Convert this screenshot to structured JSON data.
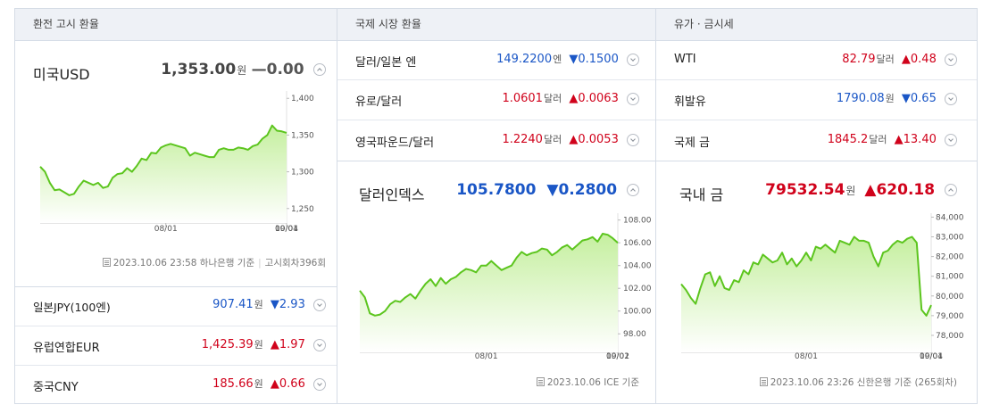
{
  "columns": [
    {
      "header": "환전 고시 환율",
      "main": {
        "name": "미국USD",
        "value": "1,353.00",
        "unit": "원",
        "dir": "flat",
        "arrow": "—",
        "change": "0.00"
      },
      "footer": {
        "date": "2023.10.06 23:58 하나은행 기준",
        "extra": "고시회차396회"
      },
      "rows": [
        {
          "name": "일본JPY(100엔)",
          "value": "907.41",
          "unit": "원",
          "dir": "down",
          "arrow": "▼",
          "change": "2.93"
        },
        {
          "name": "유럽연합EUR",
          "value": "1,425.39",
          "unit": "원",
          "dir": "up",
          "arrow": "▲",
          "change": "1.97"
        },
        {
          "name": "중국CNY",
          "value": "185.66",
          "unit": "원",
          "dir": "up",
          "arrow": "▲",
          "change": "0.66"
        }
      ]
    },
    {
      "header": "국제 시장 환율",
      "rows": [
        {
          "name": "달러/일본 엔",
          "value": "149.2200",
          "unit": "엔",
          "dir": "down",
          "arrow": "▼",
          "change": "0.1500"
        },
        {
          "name": "유로/달러",
          "value": "1.0601",
          "unit": "달러",
          "dir": "up",
          "arrow": "▲",
          "change": "0.0063"
        },
        {
          "name": "영국파운드/달러",
          "value": "1.2240",
          "unit": "달러",
          "dir": "up",
          "arrow": "▲",
          "change": "0.0053"
        }
      ],
      "main": {
        "name": "달러인덱스",
        "value": "105.7800",
        "unit": "",
        "dir": "down",
        "arrow": "▼",
        "change": "0.2800"
      },
      "footer": {
        "date": "2023.10.06 ICE 기준",
        "extra": ""
      }
    },
    {
      "header": "유가 · 금시세",
      "rows": [
        {
          "name": "WTI",
          "value": "82.79",
          "unit": "달러",
          "dir": "up",
          "arrow": "▲",
          "change": "0.48"
        },
        {
          "name": "휘발유",
          "value": "1790.08",
          "unit": "원",
          "dir": "down",
          "arrow": "▼",
          "change": "0.65"
        },
        {
          "name": "국제 금",
          "value": "1845.2",
          "unit": "달러",
          "dir": "up",
          "arrow": "▲",
          "change": "13.40"
        }
      ],
      "main": {
        "name": "국내 금",
        "value": "79532.54",
        "unit": "원",
        "dir": "up",
        "arrow": "▲",
        "change": "620.18"
      },
      "footer": {
        "date": "2023.10.06 23:26 신한은행 기준",
        "extra": "(265회차)"
      }
    }
  ],
  "colors": {
    "line": "#5cc51e",
    "fill_top": "#c5ef9f",
    "fill_bottom": "#ffffff",
    "up": "#d0021b",
    "down": "#1a56c6"
  },
  "chart_data": [
    {
      "type": "area",
      "ylim": [
        1240,
        1410
      ],
      "yticks": [
        1250,
        1300,
        1350,
        1400
      ],
      "xticks": [
        "08/01",
        "09/01",
        "10/04"
      ],
      "xtick_pos": [
        26,
        57,
        92
      ],
      "values": [
        1307,
        1300,
        1285,
        1275,
        1276,
        1272,
        1268,
        1270,
        1280,
        1288,
        1285,
        1282,
        1285,
        1278,
        1280,
        1292,
        1297,
        1298,
        1305,
        1300,
        1308,
        1318,
        1316,
        1326,
        1325,
        1333,
        1336,
        1338,
        1336,
        1334,
        1332,
        1322,
        1326,
        1324,
        1322,
        1320,
        1320,
        1330,
        1332,
        1330,
        1330,
        1333,
        1332,
        1330,
        1335,
        1337,
        1345,
        1350,
        1363,
        1356,
        1355,
        1353
      ]
    },
    {
      "type": "area",
      "ylim": [
        97,
        108.6
      ],
      "yticks": [
        98.0,
        100.0,
        102.0,
        104.0,
        106.0,
        108.0
      ],
      "ytick_labels": [
        "98.00",
        "100.00",
        "102.00",
        "104.00",
        "106.00",
        "108.00"
      ],
      "xticks": [
        "08/01",
        "09/01",
        "10/02"
      ],
      "xtick_pos": [
        25,
        58,
        91
      ],
      "values": [
        101.8,
        101.2,
        99.8,
        99.6,
        99.7,
        100.0,
        100.6,
        100.9,
        100.8,
        101.2,
        101.5,
        101.1,
        101.8,
        102.4,
        102.8,
        102.2,
        102.9,
        102.4,
        102.8,
        103.0,
        103.4,
        103.7,
        103.6,
        103.4,
        104.0,
        104.0,
        104.4,
        104.0,
        103.6,
        103.8,
        104.0,
        104.7,
        105.2,
        104.9,
        105.1,
        105.2,
        105.5,
        105.4,
        104.9,
        105.2,
        105.6,
        105.8,
        105.4,
        105.8,
        106.2,
        106.3,
        106.5,
        106.1,
        106.8,
        106.7,
        106.4,
        106.0
      ]
    },
    {
      "type": "area",
      "ylim": [
        77500,
        84200
      ],
      "yticks": [
        78000,
        79000,
        80000,
        81000,
        82000,
        83000,
        84000
      ],
      "ytick_labels": [
        "78,000",
        "79,000",
        "80,000",
        "81,000",
        "82,000",
        "83,000",
        "84,000"
      ],
      "xticks": [
        "08/01",
        "09/01",
        "10/04"
      ],
      "xtick_pos": [
        26,
        58,
        93
      ],
      "values": [
        80600,
        80300,
        79900,
        79600,
        80400,
        81100,
        81200,
        80500,
        81000,
        80400,
        80300,
        80800,
        80700,
        81300,
        81100,
        81700,
        81600,
        82100,
        81900,
        81700,
        81800,
        82200,
        81600,
        81900,
        81500,
        81800,
        82200,
        81800,
        82500,
        82400,
        82600,
        82400,
        82200,
        82800,
        82700,
        82600,
        83000,
        82800,
        82800,
        82700,
        82000,
        81500,
        82200,
        82300,
        82600,
        82800,
        82700,
        82900,
        83000,
        82700,
        79300,
        79000,
        79532
      ]
    }
  ]
}
